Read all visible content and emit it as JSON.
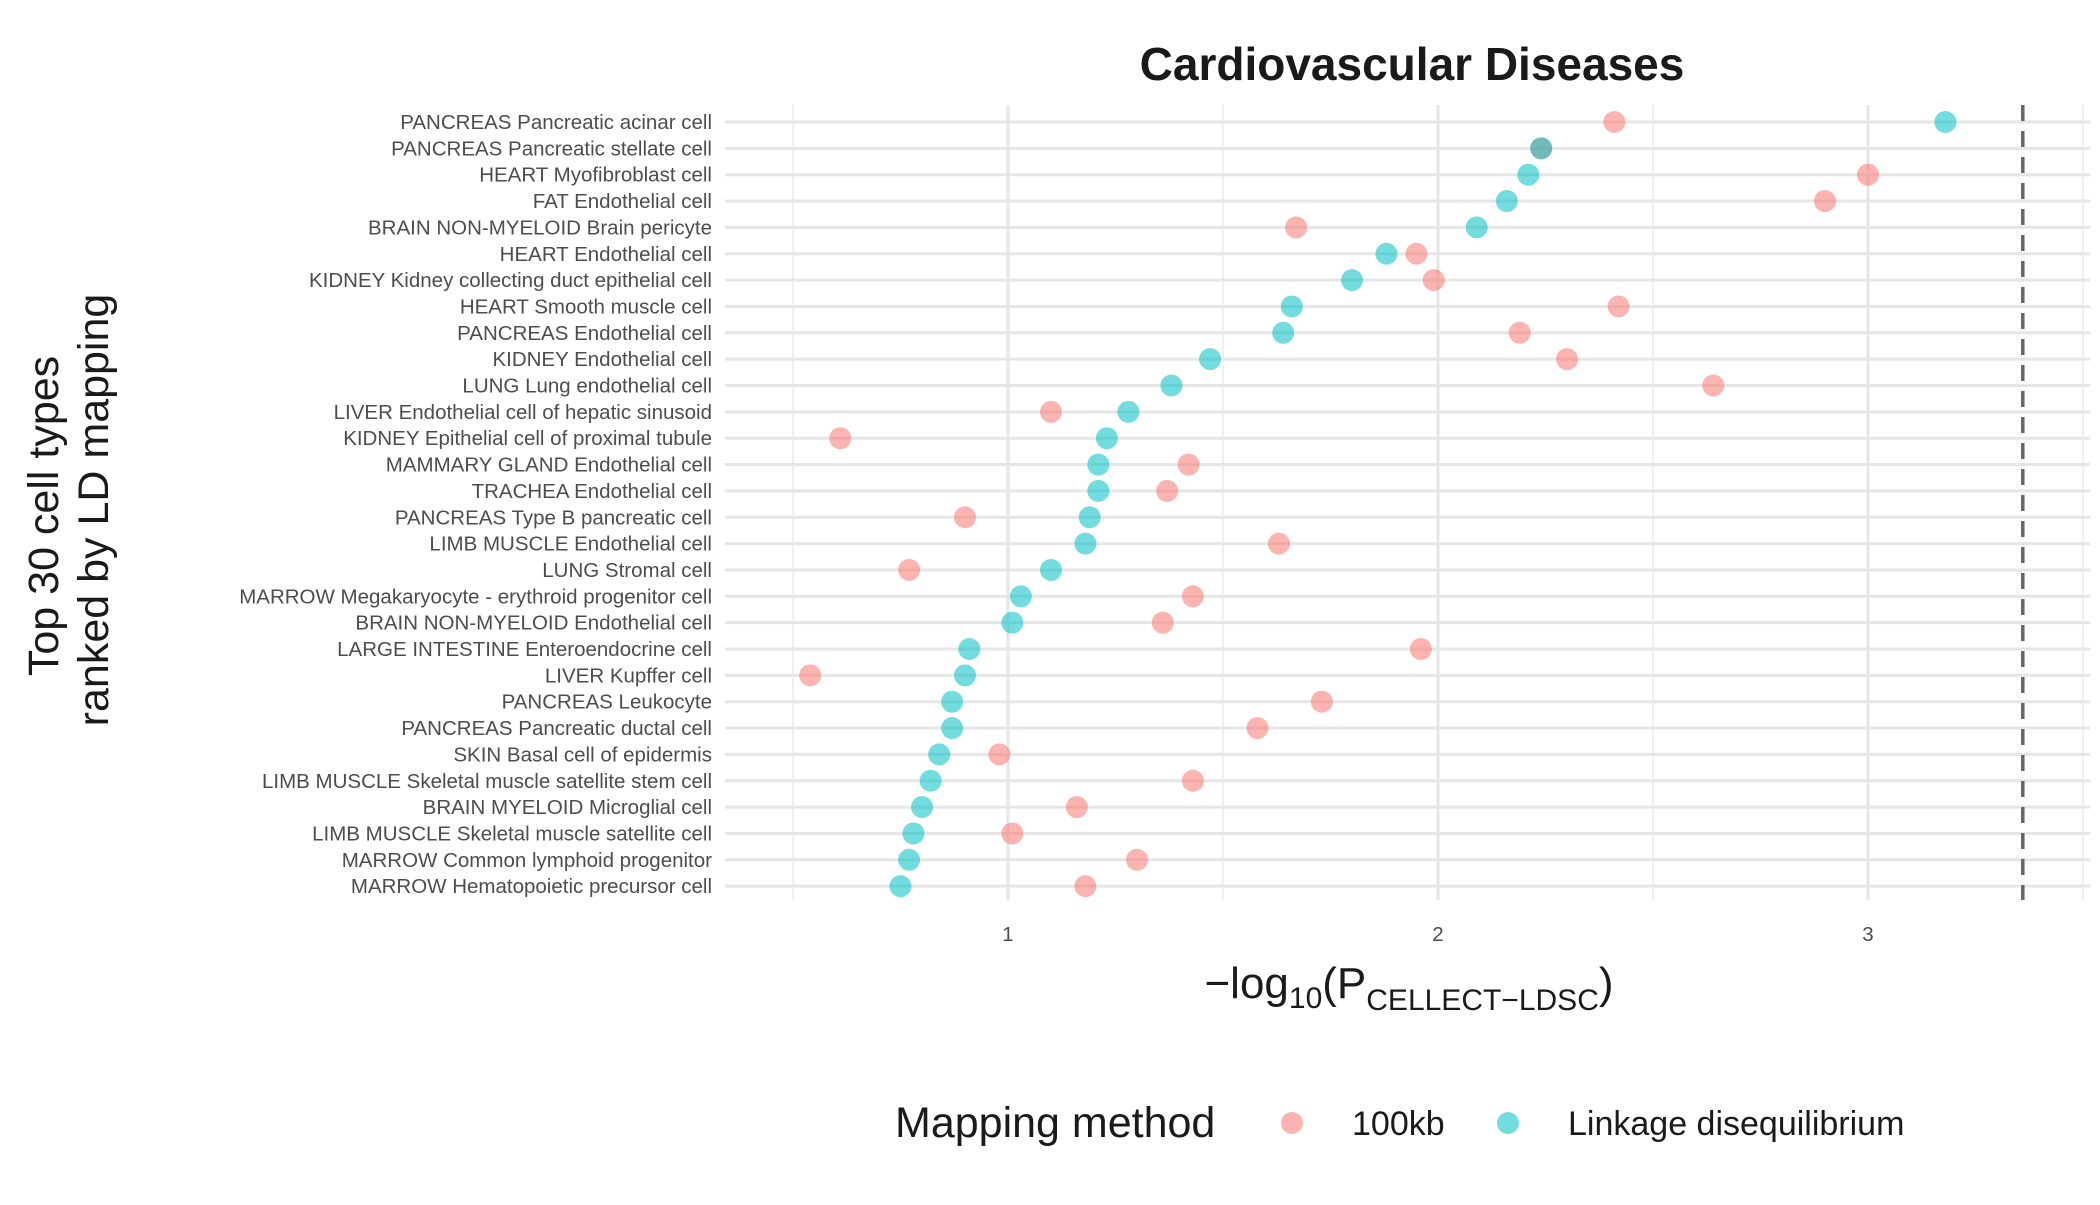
{
  "chart_data": {
    "type": "scatter",
    "title": "Cardiovascular Diseases",
    "ylabel_lines": [
      "Top 30 cell types",
      "ranked by LD mapping"
    ],
    "xlabel": {
      "prefix": "−log",
      "base": "10",
      "open": "(P",
      "subscript": "CELLECT−LDSC",
      "close": ")"
    },
    "xlim": [
      0.3,
      3.5
    ],
    "x_ticks": [
      1,
      2,
      3
    ],
    "x_minor_breaks": [
      0.5,
      1.5,
      2.5,
      3.5
    ],
    "threshold_line": 3.36,
    "grid": true,
    "legend_position": "bottom",
    "legend": {
      "title": "Mapping method",
      "entries": [
        {
          "name": "100kb",
          "color": "#F8766D"
        },
        {
          "name": "Linkage disequilibrium",
          "color": "#00BFC4"
        }
      ]
    },
    "categories": [
      "PANCREAS Pancreatic acinar cell",
      "PANCREAS Pancreatic stellate cell",
      "HEART Myofibroblast cell",
      "FAT Endothelial cell",
      "BRAIN NON-MYELOID Brain pericyte",
      "HEART Endothelial cell",
      "KIDNEY Kidney collecting duct epithelial cell",
      "HEART Smooth muscle cell",
      "PANCREAS Endothelial cell",
      "KIDNEY Endothelial cell",
      "LUNG Lung endothelial cell",
      "LIVER Endothelial cell of hepatic sinusoid",
      "KIDNEY Epithelial cell of proximal tubule",
      "MAMMARY GLAND Endothelial cell",
      "TRACHEA Endothelial cell",
      "PANCREAS Type B pancreatic cell",
      "LIMB MUSCLE Endothelial cell",
      "LUNG Stromal cell",
      "MARROW Megakaryocyte - erythroid progenitor cell",
      "BRAIN NON-MYELOID Endothelial cell",
      "LARGE INTESTINE Enteroendocrine cell",
      "LIVER Kupffer cell",
      "PANCREAS Leukocyte",
      "PANCREAS Pancreatic ductal cell",
      "SKIN Basal cell of epidermis",
      "LIMB MUSCLE Skeletal muscle satellite stem cell",
      "BRAIN MYELOID Microglial cell",
      "LIMB MUSCLE Skeletal muscle satellite cell",
      "MARROW Common lymphoid progenitor",
      "MARROW Hematopoietic precursor cell"
    ],
    "series": [
      {
        "name": "100kb",
        "color": "#F8766D",
        "values": [
          2.41,
          2.24,
          3.0,
          2.9,
          1.67,
          1.95,
          1.99,
          2.42,
          2.19,
          2.3,
          2.64,
          1.1,
          0.61,
          1.42,
          1.37,
          0.9,
          1.63,
          0.77,
          1.43,
          1.36,
          1.96,
          0.54,
          1.73,
          1.58,
          0.98,
          1.43,
          1.16,
          1.01,
          1.3,
          1.18
        ]
      },
      {
        "name": "Linkage disequilibrium",
        "color": "#00BFC4",
        "values": [
          3.18,
          2.24,
          2.21,
          2.16,
          2.09,
          1.88,
          1.8,
          1.66,
          1.64,
          1.47,
          1.38,
          1.28,
          1.23,
          1.21,
          1.21,
          1.19,
          1.18,
          1.1,
          1.03,
          1.01,
          0.91,
          0.9,
          0.87,
          0.87,
          0.84,
          0.82,
          0.8,
          0.78,
          0.77,
          0.75
        ]
      }
    ]
  }
}
